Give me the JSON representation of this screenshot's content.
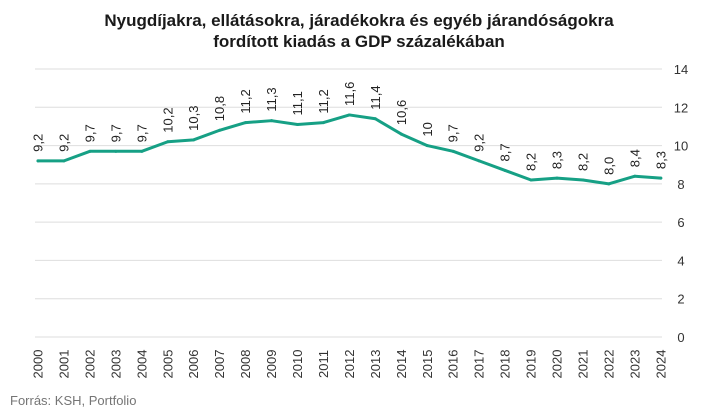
{
  "chart_data": {
    "type": "line",
    "title_lines": [
      "Nyugdíjakra, ellátásokra, járadékokra és egyéb járandóságokra",
      "fordított kiadás a GDP százalékában"
    ],
    "categories": [
      "2000",
      "2001",
      "2002",
      "2003",
      "2004",
      "2005",
      "2006",
      "2007",
      "2008",
      "2009",
      "2010",
      "2011",
      "2012",
      "2013",
      "2014",
      "2015",
      "2016",
      "2017",
      "2018",
      "2019",
      "2020",
      "2021",
      "2022",
      "2023",
      "2024"
    ],
    "values": [
      9.2,
      9.2,
      9.7,
      9.7,
      9.7,
      10.2,
      10.3,
      10.8,
      11.2,
      11.3,
      11.1,
      11.2,
      11.6,
      11.4,
      10.6,
      10.0,
      9.7,
      9.2,
      8.7,
      8.2,
      8.3,
      8.2,
      8.0,
      8.4,
      8.3
    ],
    "data_labels": [
      "9,2",
      "9,2",
      "9,7",
      "9,7",
      "9,7",
      "10,2",
      "10,3",
      "10,8",
      "11,2",
      "11,3",
      "11,1",
      "11,2",
      "11,6",
      "11,4",
      "10,6",
      "10",
      "9,7",
      "9,2",
      "8,7",
      "8,2",
      "8,3",
      "8,2",
      "8,0",
      "8,4",
      "8,3"
    ],
    "ylim": [
      0,
      14
    ],
    "yticks": [
      0,
      2,
      4,
      6,
      8,
      10,
      12,
      14
    ],
    "ytick_labels": [
      "0",
      "2",
      "4",
      "6",
      "8",
      "10",
      "12",
      "14"
    ],
    "y_axis_position": "right",
    "grid": true,
    "xlabel": "",
    "ylabel": "",
    "series_color": "#16a085",
    "grid_color": "#dedede",
    "text_color": "#333333",
    "source": "Forrás: KSH, Portfolio"
  }
}
